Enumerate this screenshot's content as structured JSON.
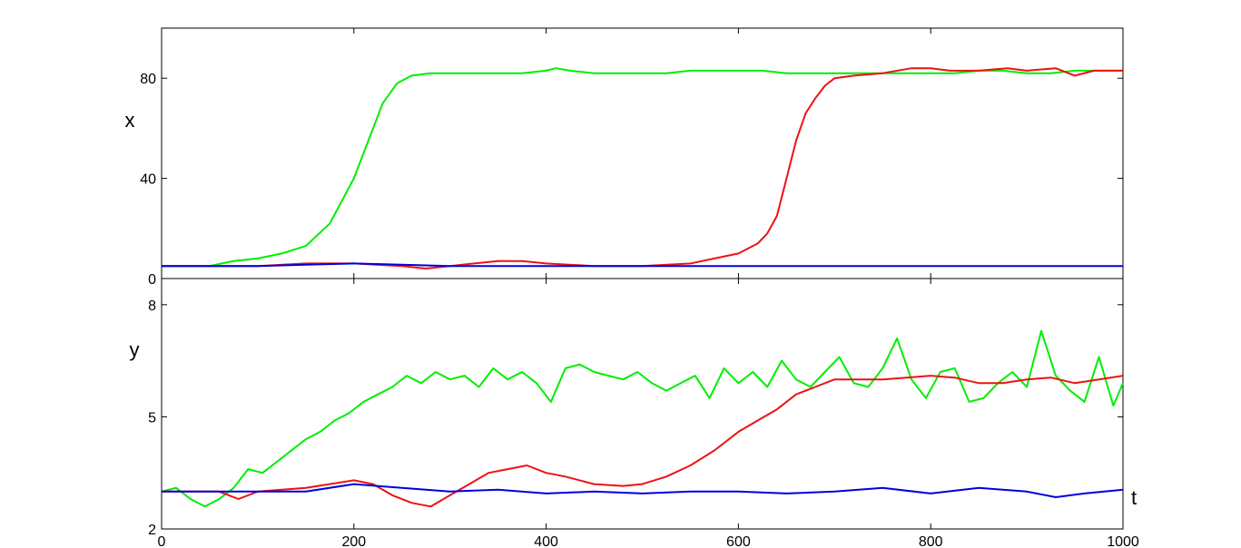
{
  "chart_data": [
    {
      "type": "line",
      "title": "",
      "xlabel": "",
      "ylabel": "x",
      "xlim": [
        0,
        1000
      ],
      "ylim": [
        0,
        100
      ],
      "yticks": [
        0,
        40,
        80
      ],
      "xticks": [
        200,
        400,
        600,
        800
      ],
      "xtick_labels_shown": false,
      "grid": false,
      "legend": "none",
      "series": [
        {
          "color": "#00ee00",
          "x": [
            0,
            25,
            50,
            75,
            100,
            125,
            150,
            175,
            200,
            215,
            230,
            245,
            260,
            280,
            300,
            325,
            350,
            375,
            400,
            410,
            425,
            450,
            475,
            500,
            525,
            550,
            575,
            600,
            625,
            650,
            675,
            700,
            725,
            750,
            775,
            800,
            825,
            850,
            875,
            900,
            925,
            950,
            975,
            1000
          ],
          "y": [
            5,
            5,
            5,
            7,
            8,
            10,
            13,
            22,
            40,
            55,
            70,
            78,
            81,
            82,
            82,
            82,
            82,
            82,
            83,
            84,
            83,
            82,
            82,
            82,
            82,
            83,
            83,
            83,
            83,
            82,
            82,
            82,
            82,
            82,
            82,
            82,
            82,
            83,
            83,
            82,
            82,
            83,
            83,
            83
          ]
        },
        {
          "color": "#ee1111",
          "x": [
            0,
            25,
            50,
            75,
            100,
            150,
            200,
            250,
            275,
            300,
            325,
            350,
            375,
            400,
            450,
            500,
            550,
            575,
            600,
            620,
            630,
            640,
            650,
            660,
            670,
            680,
            690,
            700,
            720,
            750,
            780,
            800,
            820,
            850,
            880,
            900,
            930,
            950,
            970,
            1000
          ],
          "y": [
            5,
            5,
            5,
            5,
            5,
            6,
            6,
            5,
            4,
            5,
            6,
            7,
            7,
            6,
            5,
            5,
            6,
            8,
            10,
            14,
            18,
            25,
            40,
            55,
            66,
            72,
            77,
            80,
            81,
            82,
            84,
            84,
            83,
            83,
            84,
            83,
            84,
            81,
            83,
            83
          ]
        },
        {
          "color": "#0000dd",
          "x": [
            0,
            50,
            100,
            150,
            200,
            250,
            300,
            350,
            400,
            450,
            500,
            550,
            600,
            650,
            700,
            750,
            800,
            850,
            900,
            950,
            1000
          ],
          "y": [
            5,
            5,
            5,
            5.5,
            6,
            5.5,
            5,
            5,
            5,
            5,
            5,
            5,
            5,
            5,
            5,
            5,
            5,
            5,
            5,
            5,
            5
          ]
        }
      ]
    },
    {
      "type": "line",
      "title": "",
      "xlabel": "t",
      "ylabel": "y",
      "xlim": [
        0,
        1000
      ],
      "ylim": [
        2,
        8.7
      ],
      "yticks": [
        2,
        5,
        8
      ],
      "xticks": [
        0,
        200,
        400,
        600,
        800,
        1000
      ],
      "grid": false,
      "legend": "none",
      "series": [
        {
          "color": "#00ee00",
          "x": [
            0,
            15,
            30,
            45,
            60,
            75,
            90,
            105,
            120,
            135,
            150,
            165,
            180,
            195,
            210,
            225,
            240,
            255,
            270,
            285,
            300,
            315,
            330,
            345,
            360,
            375,
            390,
            405,
            420,
            435,
            450,
            465,
            480,
            495,
            510,
            525,
            540,
            555,
            570,
            585,
            600,
            615,
            630,
            645,
            660,
            675,
            690,
            705,
            720,
            735,
            750,
            765,
            780,
            795,
            810,
            825,
            840,
            855,
            870,
            885,
            900,
            915,
            930,
            945,
            960,
            975,
            990,
            1000
          ],
          "y": [
            3.0,
            3.1,
            2.8,
            2.6,
            2.8,
            3.1,
            3.6,
            3.5,
            3.8,
            4.1,
            4.4,
            4.6,
            4.9,
            5.1,
            5.4,
            5.6,
            5.8,
            6.1,
            5.9,
            6.2,
            6.0,
            6.1,
            5.8,
            6.3,
            6.0,
            6.2,
            5.9,
            5.4,
            6.3,
            6.4,
            6.2,
            6.1,
            6.0,
            6.2,
            5.9,
            5.7,
            5.9,
            6.1,
            5.5,
            6.3,
            5.9,
            6.2,
            5.8,
            6.5,
            6.0,
            5.8,
            6.2,
            6.6,
            5.9,
            5.8,
            6.3,
            7.1,
            6.0,
            5.5,
            6.2,
            6.3,
            5.4,
            5.5,
            5.9,
            6.2,
            5.8,
            7.3,
            6.1,
            5.7,
            5.4,
            6.6,
            5.3,
            5.9
          ]
        },
        {
          "color": "#ee1111",
          "x": [
            0,
            30,
            60,
            80,
            100,
            150,
            200,
            220,
            240,
            260,
            280,
            300,
            320,
            340,
            360,
            380,
            400,
            420,
            450,
            480,
            500,
            525,
            550,
            575,
            600,
            620,
            640,
            660,
            680,
            700,
            725,
            750,
            775,
            800,
            825,
            850,
            875,
            900,
            925,
            950,
            975,
            1000
          ],
          "y": [
            3.0,
            3.0,
            3.0,
            2.8,
            3.0,
            3.1,
            3.3,
            3.2,
            2.9,
            2.7,
            2.6,
            2.9,
            3.2,
            3.5,
            3.6,
            3.7,
            3.5,
            3.4,
            3.2,
            3.15,
            3.2,
            3.4,
            3.7,
            4.1,
            4.6,
            4.9,
            5.2,
            5.6,
            5.8,
            6.0,
            6.0,
            6.0,
            6.05,
            6.1,
            6.05,
            5.9,
            5.9,
            6.0,
            6.05,
            5.9,
            6.0,
            6.1
          ]
        },
        {
          "color": "#0000dd",
          "x": [
            0,
            50,
            100,
            150,
            200,
            250,
            300,
            350,
            400,
            450,
            500,
            550,
            600,
            650,
            700,
            750,
            800,
            850,
            900,
            930,
            960,
            1000
          ],
          "y": [
            3.0,
            3.0,
            3.0,
            3.0,
            3.2,
            3.1,
            3.0,
            3.05,
            2.95,
            3.0,
            2.95,
            3.0,
            3.0,
            2.95,
            3.0,
            3.1,
            2.95,
            3.1,
            3.0,
            2.85,
            2.95,
            3.05
          ]
        }
      ]
    }
  ]
}
